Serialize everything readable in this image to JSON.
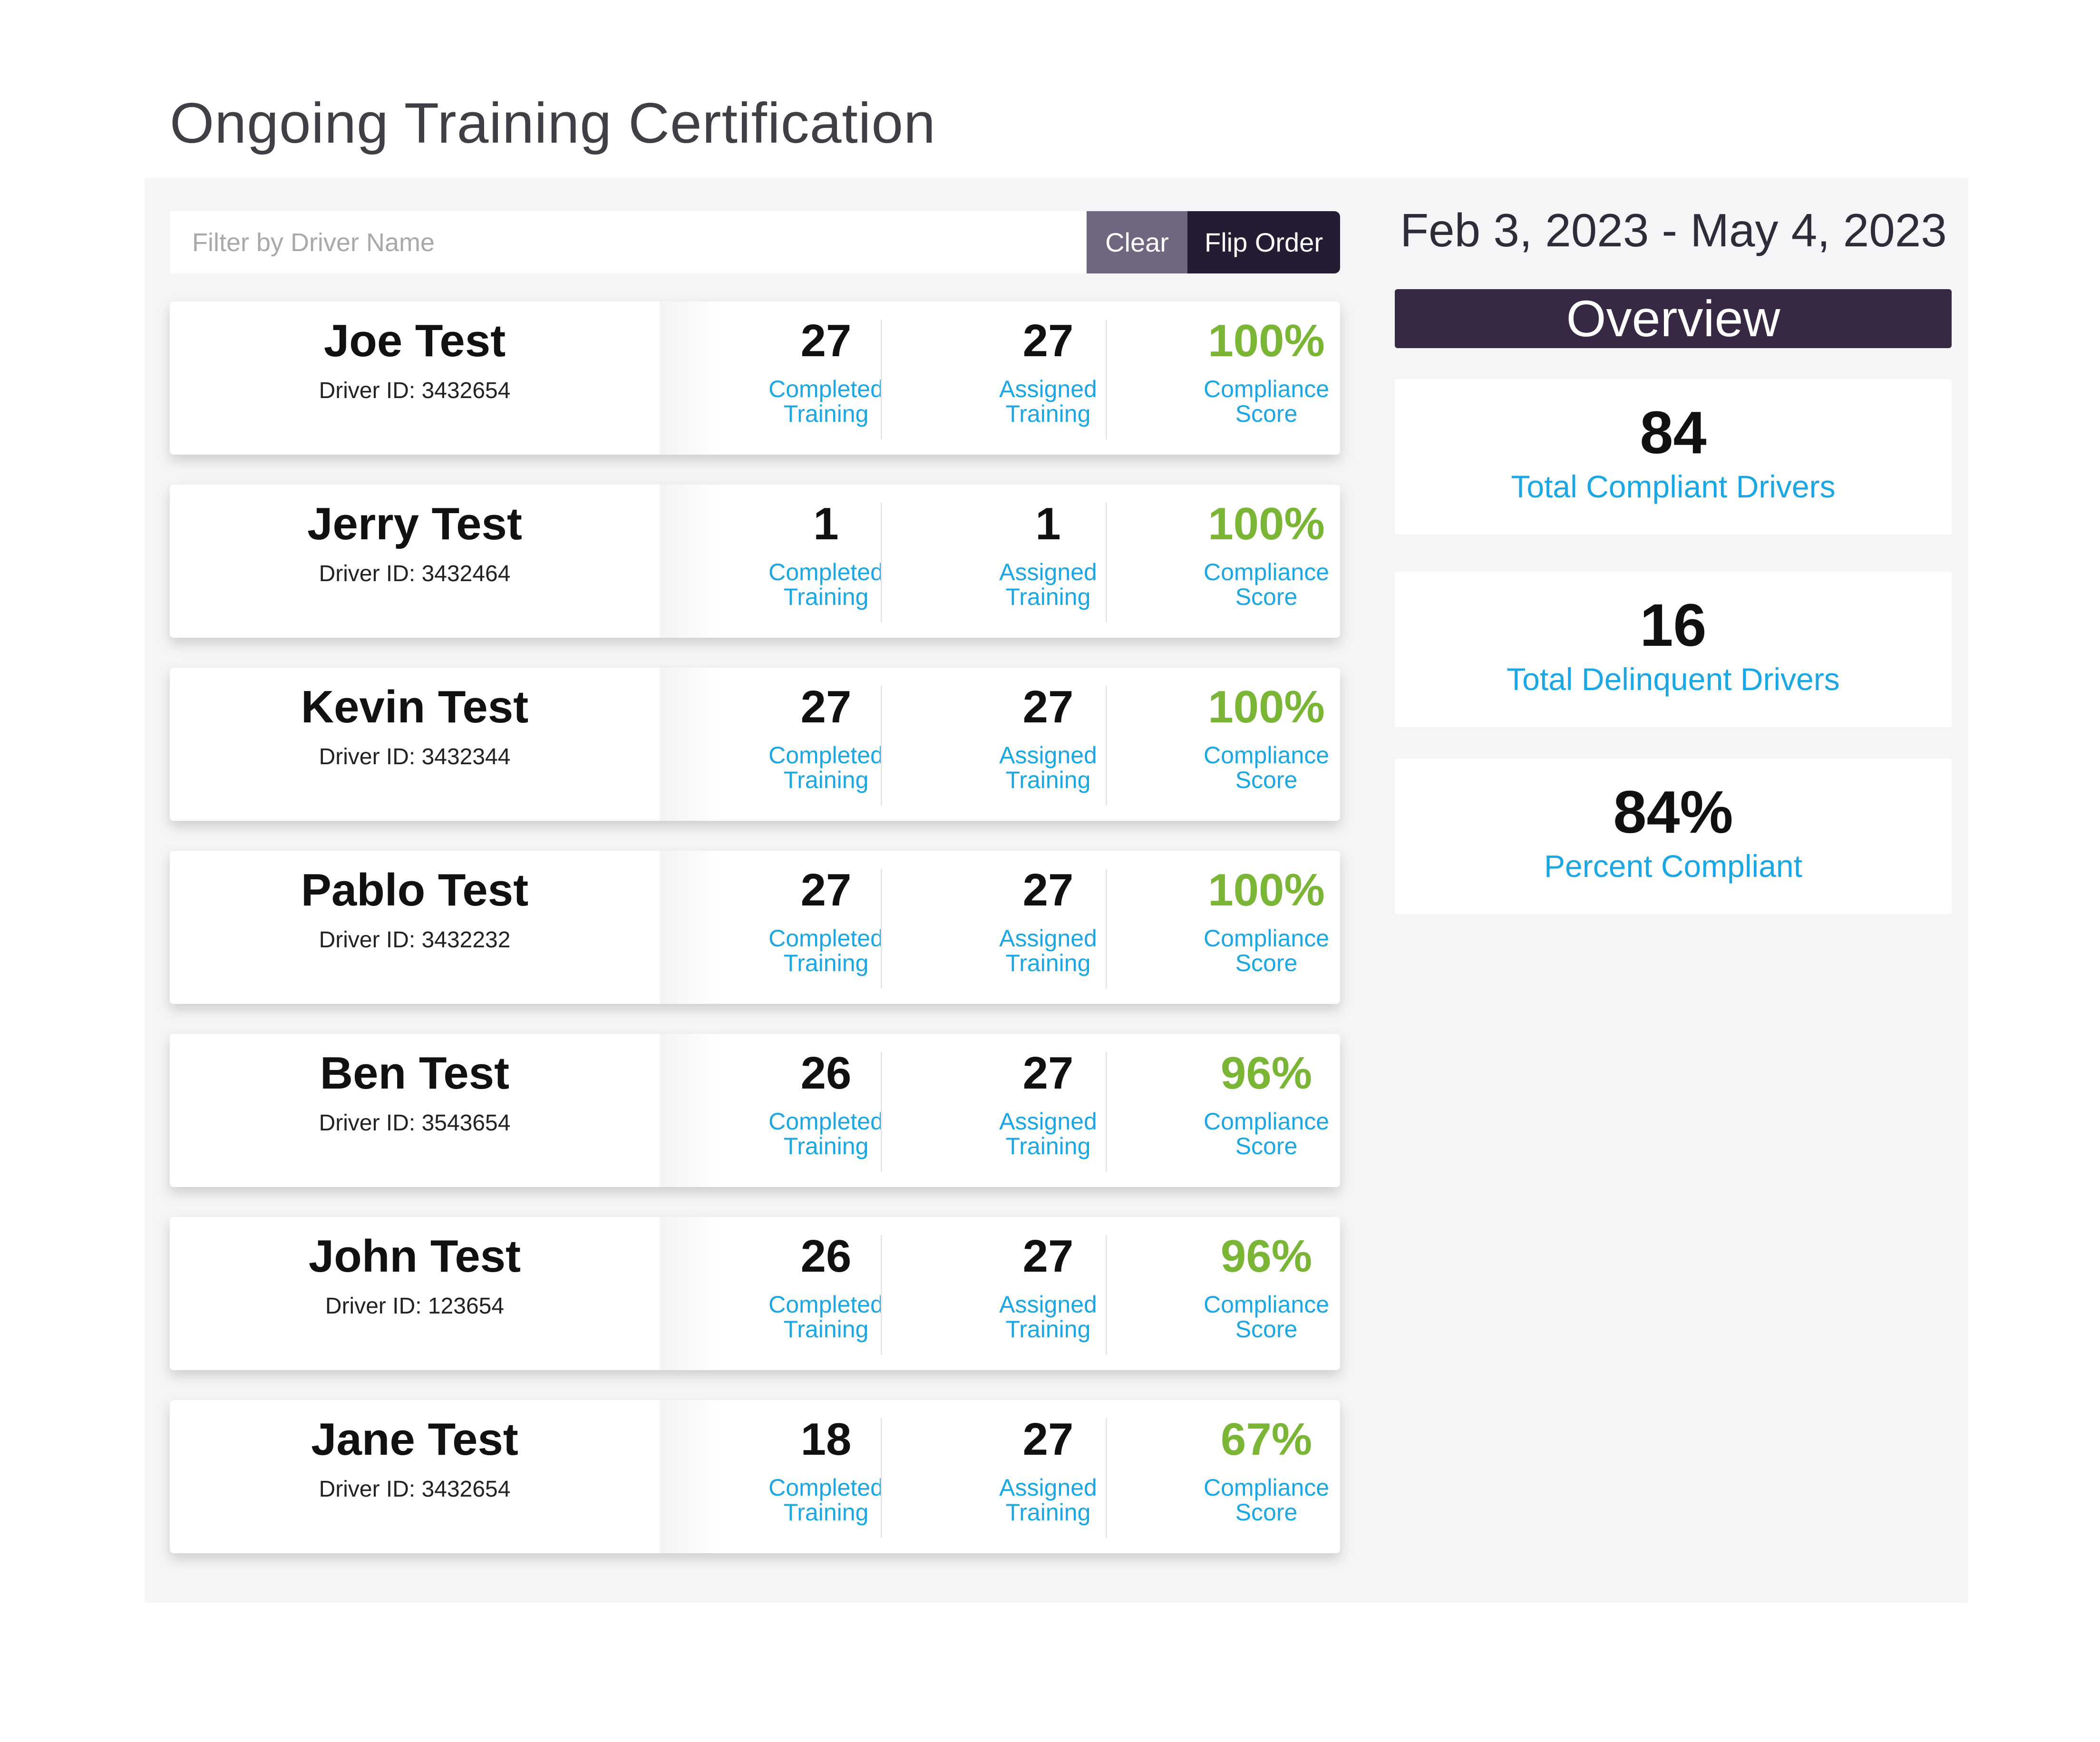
{
  "page": {
    "title": "Ongoing Training Certification"
  },
  "filter": {
    "placeholder": "Filter by Driver Name",
    "value": "",
    "clear_label": "Clear",
    "flip_label": "Flip Order"
  },
  "labels": {
    "completed_line1": "Completed",
    "completed_line2": "Training",
    "assigned_line1": "Assigned",
    "assigned_line2": "Training",
    "compliance_line1": "Compliance",
    "compliance_line2": "Score"
  },
  "drivers": [
    {
      "name": "Joe Test",
      "driver_id": "Driver ID: 3432654",
      "completed": "27",
      "assigned": "27",
      "score": "100%"
    },
    {
      "name": "Jerry Test",
      "driver_id": "Driver ID: 3432464",
      "completed": "1",
      "assigned": "1",
      "score": "100%"
    },
    {
      "name": "Kevin Test",
      "driver_id": "Driver ID: 3432344",
      "completed": "27",
      "assigned": "27",
      "score": "100%"
    },
    {
      "name": "Pablo Test",
      "driver_id": "Driver ID: 3432232",
      "completed": "27",
      "assigned": "27",
      "score": "100%"
    },
    {
      "name": "Ben Test",
      "driver_id": "Driver ID: 3543654",
      "completed": "26",
      "assigned": "27",
      "score": "96%"
    },
    {
      "name": "John Test",
      "driver_id": "Driver ID: 123654",
      "completed": "26",
      "assigned": "27",
      "score": "96%"
    },
    {
      "name": "Jane Test",
      "driver_id": "Driver ID: 3432654",
      "completed": "18",
      "assigned": "27",
      "score": "67%"
    }
  ],
  "overview": {
    "date_range": "Feb 3, 2023 - May 4, 2023",
    "header": "Overview",
    "stats": [
      {
        "value": "84",
        "label": "Total Compliant Drivers"
      },
      {
        "value": "16",
        "label": "Total Delinquent Drivers"
      },
      {
        "value": "84%",
        "label": "Percent Compliant"
      }
    ]
  },
  "colors": {
    "accent_blue": "#1ba7e3",
    "score_green": "#7ab536",
    "header_purple": "#372944",
    "flip_button": "#231c32",
    "clear_button": "#6f667f"
  }
}
